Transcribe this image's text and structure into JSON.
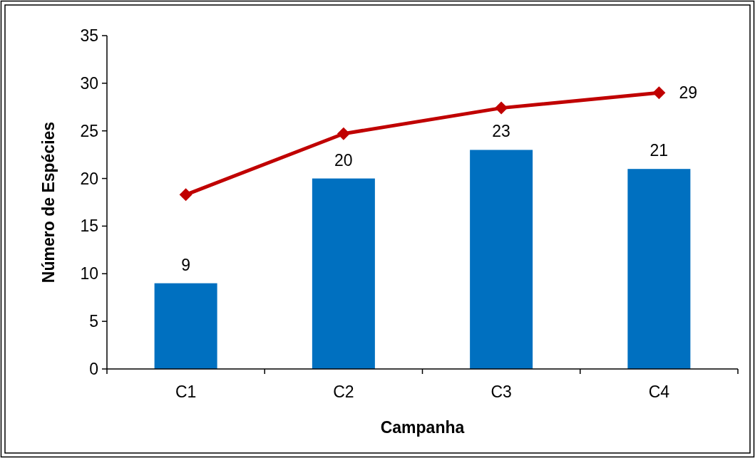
{
  "chart_data": {
    "type": "bar",
    "xlabel": "Campanha",
    "ylabel": "Número de Espécies",
    "categories": [
      "C1",
      "C2",
      "C3",
      "C4"
    ],
    "series": [
      {
        "color": "#0070c0",
        "values": [
          9,
          20,
          23,
          21
        ],
        "value_labels": [
          "9",
          "20",
          "23",
          "21"
        ]
      },
      {
        "type": "line",
        "color": "#c00000",
        "values": [
          18.3,
          24.7,
          27.4,
          29
        ],
        "value_labels": [
          null,
          null,
          null,
          "29"
        ],
        "marker": "diamond",
        "line_style": "solid"
      }
    ],
    "ylim": [
      0,
      35
    ],
    "yticks": [
      0,
      5,
      10,
      15,
      20,
      25,
      30,
      35
    ],
    "grid": false
  }
}
